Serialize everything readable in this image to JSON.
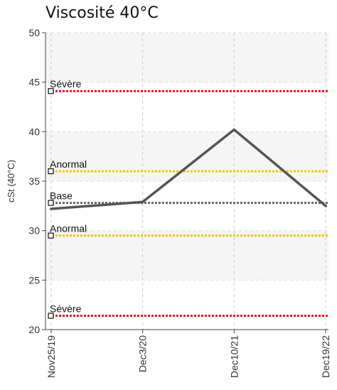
{
  "chart_data": {
    "type": "line",
    "title": "Viscosité 40°C",
    "xlabel": "",
    "ylabel": "cSt (40°C)",
    "ylim": [
      20,
      50
    ],
    "yticks": [
      20,
      25,
      30,
      35,
      40,
      45,
      50
    ],
    "categories": [
      "Nov25/19",
      "Dec3/20",
      "Dec10/21",
      "Dec19/22"
    ],
    "series": [
      {
        "values": [
          32.2,
          32.9,
          40.2,
          32.5
        ],
        "color": "#555555"
      }
    ],
    "thresholds": [
      {
        "label": "Sévère",
        "value": 44.1,
        "color": "#e8161b"
      },
      {
        "label": "Anormal",
        "value": 36.0,
        "color": "#f5c400"
      },
      {
        "label": "Base",
        "value": 32.8,
        "color": "#666666"
      },
      {
        "label": "Anormal",
        "value": 29.5,
        "color": "#f5c400"
      },
      {
        "label": "Sévère",
        "value": 21.4,
        "color": "#e8161b"
      }
    ],
    "grid": true,
    "band_colors": [
      "#f5f5f5",
      "#ffffff"
    ]
  }
}
